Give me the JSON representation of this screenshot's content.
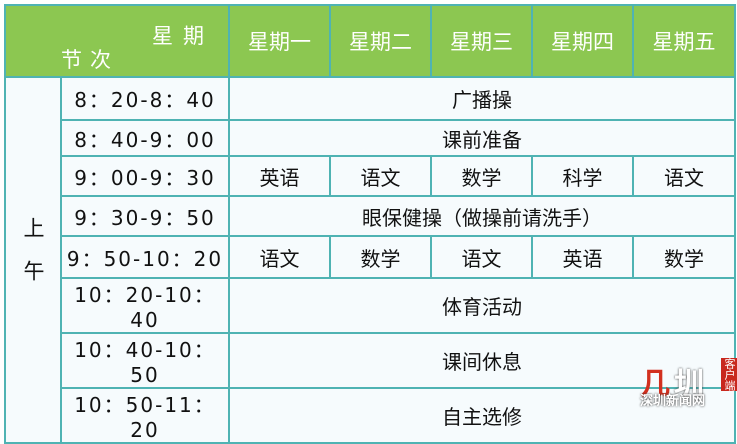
{
  "header": {
    "corner_top": "星期",
    "corner_bottom": "节次",
    "days": [
      "星期一",
      "星期二",
      "星期三",
      "星期四",
      "星期五"
    ]
  },
  "period_label": "上午",
  "rows": [
    {
      "time": "8：20-8：40",
      "span": "广播操"
    },
    {
      "time": "8：40-9：00",
      "span": "课前准备"
    },
    {
      "time": "9：00-9：30",
      "cells": [
        "英语",
        "语文",
        "数学",
        "科学",
        "语文"
      ]
    },
    {
      "time": "9：30-9：50",
      "span": "眼保健操（做操前请洗手）"
    },
    {
      "time": "9：50-10：20",
      "cells": [
        "语文",
        "数学",
        "语文",
        "英语",
        "数学"
      ]
    },
    {
      "time": "10：20-10：40",
      "span": "体育活动"
    },
    {
      "time": "10：40-10：50",
      "span": "课间休息"
    },
    {
      "time": "10：50-11：20",
      "span": "自主选修"
    }
  ],
  "watermark": {
    "logo": "圳",
    "side": "客户端",
    "name": "深圳新闻网"
  },
  "colors": {
    "header": "#8cc751",
    "border": "#4fb3b3",
    "brand": "#d2301f"
  }
}
